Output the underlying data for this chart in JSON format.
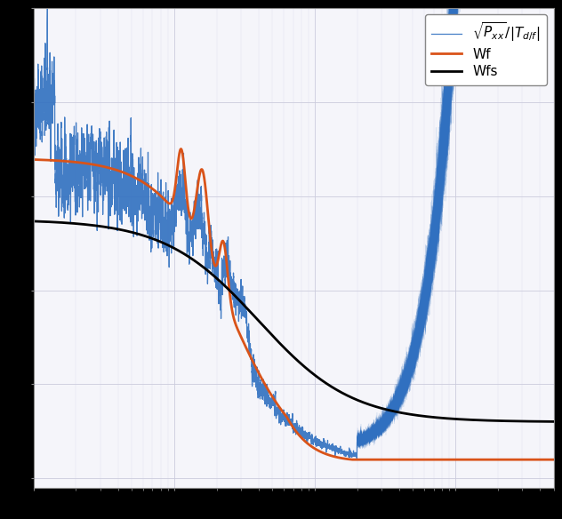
{
  "title": "",
  "xlabel": "",
  "ylabel": "",
  "background_color": "#f0f0f8",
  "plot_bg_color": "#f5f5fa",
  "grid_color": "#ccccdd",
  "legend_labels": [
    "$\\sqrt{P_{xx}}/|T_{d/f}|$",
    "Wf",
    "Wfs"
  ],
  "line_colors_blue": "#3070c0",
  "line_colors_orange": "#d95319",
  "line_colors_black": "#000000",
  "fig_bg": "#000000",
  "xlim": [
    0,
    1
  ],
  "ylim": [
    0,
    1
  ]
}
